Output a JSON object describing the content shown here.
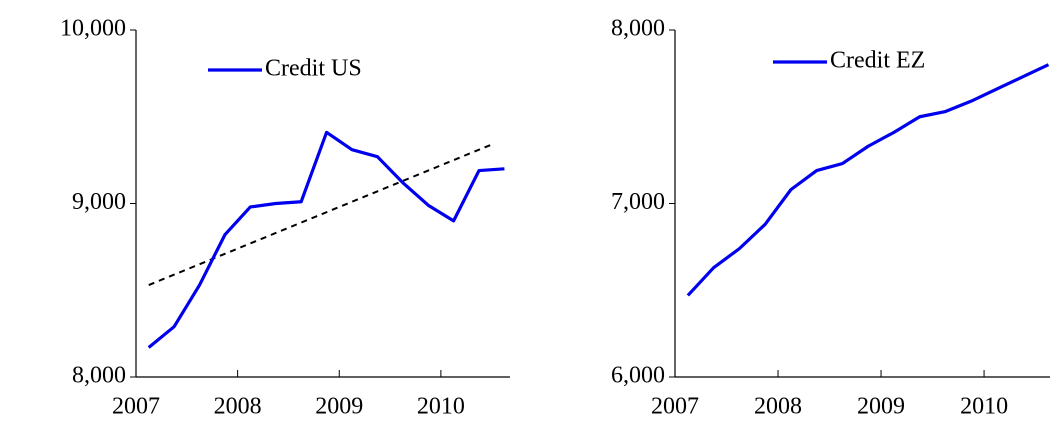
{
  "chart_data": [
    {
      "type": "line",
      "x": [
        2007.125,
        2007.375,
        2007.625,
        2007.875,
        2008.125,
        2008.375,
        2008.625,
        2008.875,
        2009.125,
        2009.375,
        2009.625,
        2009.875,
        2010.125,
        2010.375,
        2010.625
      ],
      "series": [
        {
          "name": "Credit US",
          "color": "#0000ee",
          "values": [
            8170,
            8290,
            8530,
            8820,
            8980,
            9000,
            9010,
            9410,
            9310,
            9270,
            9120,
            8990,
            8900,
            9190,
            9200
          ]
        }
      ],
      "trend": {
        "color": "#000000",
        "x": [
          2007.125,
          2010.5
        ],
        "values": [
          8530,
          9340
        ]
      },
      "xlim": [
        2007,
        2010.68
      ],
      "xticks": [
        2007,
        2008,
        2009,
        2010
      ],
      "ylim": [
        8000,
        10000
      ],
      "yticks": [
        {
          "value": 8000,
          "label": "8,000"
        },
        {
          "value": 9000,
          "label": "9,000"
        },
        {
          "value": 10000,
          "label": "10,000"
        }
      ],
      "legend": "upper center"
    },
    {
      "type": "line",
      "x": [
        2007.125,
        2007.375,
        2007.625,
        2007.875,
        2008.125,
        2008.375,
        2008.625,
        2008.875,
        2009.125,
        2009.375,
        2009.625,
        2009.875,
        2010.125,
        2010.375,
        2010.625
      ],
      "series": [
        {
          "name": "Credit EZ",
          "color": "#0000ee",
          "values": [
            6470,
            6630,
            6740,
            6880,
            7080,
            7190,
            7230,
            7330,
            7410,
            7500,
            7530,
            7590,
            7660,
            7730,
            7800
          ]
        }
      ],
      "xlim": [
        2007,
        2010.64
      ],
      "xticks": [
        2007,
        2008,
        2009,
        2010
      ],
      "ylim": [
        6000,
        8000
      ],
      "yticks": [
        {
          "value": 6000,
          "label": "6,000"
        },
        {
          "value": 7000,
          "label": "7,000"
        },
        {
          "value": 8000,
          "label": "8,000"
        }
      ],
      "legend": "upper center"
    }
  ]
}
